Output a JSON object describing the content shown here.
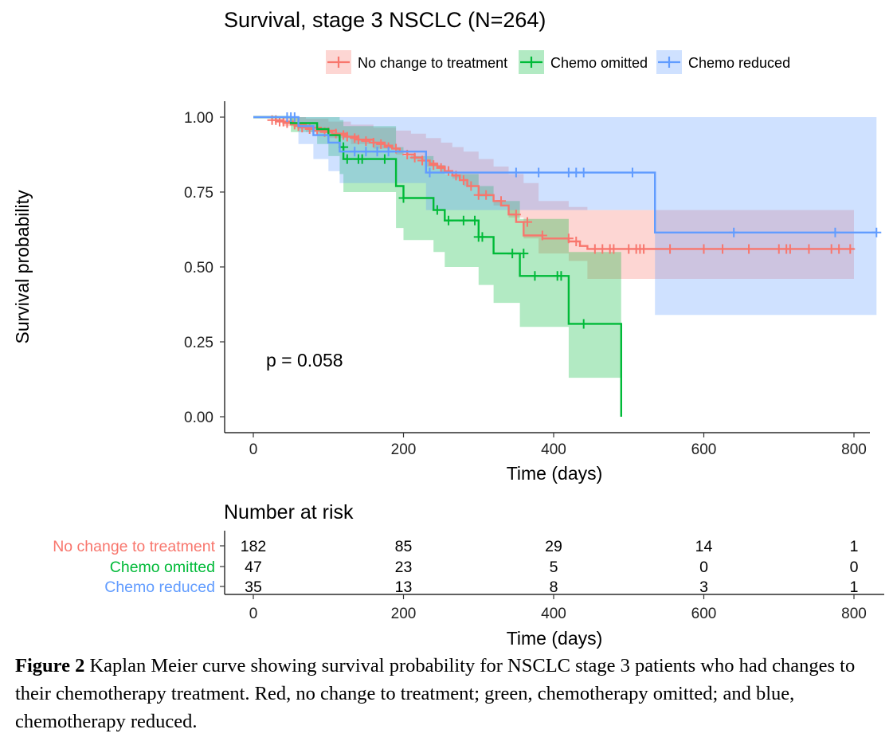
{
  "chart_data": {
    "type": "line",
    "subtype": "kaplan-meier",
    "title": "Survival, stage 3 NSCLC (N=264)",
    "xlabel": "Time (days)",
    "ylabel": "Survival probability",
    "xlim": [
      0,
      830
    ],
    "ylim": [
      0,
      1
    ],
    "x_ticks": [
      0,
      200,
      400,
      600,
      800
    ],
    "x_tick_labels": [
      "0",
      "200",
      "400",
      "600",
      "800"
    ],
    "y_ticks": [
      0,
      0.25,
      0.5,
      0.75,
      1
    ],
    "y_tick_labels": [
      "0.00",
      "0.25",
      "0.50",
      "0.75",
      "1.00"
    ],
    "legend_position": "top",
    "annotation": "p = 0.058",
    "series": [
      {
        "name": "No change to treatment",
        "color": "#F8766D",
        "steps": [
          [
            0,
            1.0
          ],
          [
            30,
            0.99
          ],
          [
            40,
            0.985
          ],
          [
            55,
            0.975
          ],
          [
            70,
            0.965
          ],
          [
            90,
            0.955
          ],
          [
            110,
            0.945
          ],
          [
            125,
            0.935
          ],
          [
            140,
            0.925
          ],
          [
            160,
            0.915
          ],
          [
            175,
            0.905
          ],
          [
            185,
            0.895
          ],
          [
            195,
            0.885
          ],
          [
            205,
            0.875
          ],
          [
            215,
            0.865
          ],
          [
            225,
            0.855
          ],
          [
            235,
            0.845
          ],
          [
            245,
            0.835
          ],
          [
            255,
            0.82
          ],
          [
            265,
            0.805
          ],
          [
            275,
            0.79
          ],
          [
            285,
            0.77
          ],
          [
            300,
            0.74
          ],
          [
            320,
            0.72
          ],
          [
            330,
            0.705
          ],
          [
            340,
            0.675
          ],
          [
            350,
            0.65
          ],
          [
            360,
            0.605
          ],
          [
            385,
            0.595
          ],
          [
            420,
            0.585
          ],
          [
            435,
            0.57
          ],
          [
            445,
            0.56
          ],
          [
            800,
            0.56
          ]
        ],
        "ci_upper": [
          [
            0,
            1.0
          ],
          [
            40,
            1.0
          ],
          [
            70,
            0.995
          ],
          [
            100,
            0.985
          ],
          [
            130,
            0.975
          ],
          [
            160,
            0.965
          ],
          [
            190,
            0.955
          ],
          [
            210,
            0.945
          ],
          [
            230,
            0.93
          ],
          [
            250,
            0.915
          ],
          [
            265,
            0.9
          ],
          [
            280,
            0.885
          ],
          [
            300,
            0.86
          ],
          [
            320,
            0.835
          ],
          [
            340,
            0.81
          ],
          [
            360,
            0.78
          ],
          [
            380,
            0.72
          ],
          [
            420,
            0.7
          ],
          [
            445,
            0.69
          ],
          [
            800,
            0.69
          ]
        ],
        "ci_lower": [
          [
            0,
            1.0
          ],
          [
            40,
            0.97
          ],
          [
            70,
            0.95
          ],
          [
            100,
            0.93
          ],
          [
            130,
            0.91
          ],
          [
            160,
            0.895
          ],
          [
            190,
            0.875
          ],
          [
            210,
            0.86
          ],
          [
            230,
            0.835
          ],
          [
            250,
            0.815
          ],
          [
            265,
            0.795
          ],
          [
            280,
            0.77
          ],
          [
            300,
            0.735
          ],
          [
            320,
            0.705
          ],
          [
            340,
            0.665
          ],
          [
            360,
            0.595
          ],
          [
            380,
            0.545
          ],
          [
            420,
            0.52
          ],
          [
            445,
            0.46
          ],
          [
            800,
            0.46
          ]
        ],
        "censored": [
          25,
          30,
          35,
          40,
          45,
          55,
          60,
          65,
          75,
          85,
          95,
          100,
          110,
          120,
          125,
          135,
          140,
          150,
          160,
          170,
          180,
          190,
          205,
          215,
          225,
          240,
          250,
          260,
          270,
          280,
          290,
          300,
          310,
          330,
          350,
          365,
          385,
          420,
          430,
          455,
          465,
          475,
          480,
          500,
          510,
          515,
          520,
          555,
          600,
          625,
          660,
          700,
          710,
          715,
          740,
          770,
          780,
          795
        ],
        "censored_y": [
          0.99,
          0.99,
          0.985,
          0.985,
          0.98,
          0.975,
          0.97,
          0.965,
          0.96,
          0.955,
          0.95,
          0.95,
          0.945,
          0.94,
          0.935,
          0.93,
          0.925,
          0.92,
          0.915,
          0.91,
          0.9,
          0.895,
          0.875,
          0.865,
          0.855,
          0.84,
          0.83,
          0.82,
          0.805,
          0.79,
          0.77,
          0.74,
          0.74,
          0.72,
          0.675,
          0.65,
          0.605,
          0.595,
          0.585,
          0.56,
          0.56,
          0.56,
          0.56,
          0.56,
          0.56,
          0.56,
          0.56,
          0.56,
          0.56,
          0.56,
          0.56,
          0.56,
          0.56,
          0.56,
          0.56,
          0.56,
          0.56,
          0.56
        ]
      },
      {
        "name": "Chemo omitted",
        "color": "#00BA38",
        "steps": [
          [
            0,
            1.0
          ],
          [
            50,
            0.98
          ],
          [
            85,
            0.96
          ],
          [
            100,
            0.94
          ],
          [
            115,
            0.9
          ],
          [
            120,
            0.86
          ],
          [
            190,
            0.77
          ],
          [
            200,
            0.73
          ],
          [
            240,
            0.69
          ],
          [
            255,
            0.655
          ],
          [
            300,
            0.6
          ],
          [
            320,
            0.545
          ],
          [
            355,
            0.47
          ],
          [
            420,
            0.31
          ],
          [
            490,
            0.0
          ]
        ],
        "ci_upper": [
          [
            0,
            1.0
          ],
          [
            50,
            1.0
          ],
          [
            85,
            1.0
          ],
          [
            100,
            1.0
          ],
          [
            115,
            0.99
          ],
          [
            120,
            0.97
          ],
          [
            190,
            0.9
          ],
          [
            200,
            0.87
          ],
          [
            240,
            0.84
          ],
          [
            255,
            0.81
          ],
          [
            300,
            0.77
          ],
          [
            320,
            0.72
          ],
          [
            355,
            0.66
          ],
          [
            420,
            0.55
          ],
          [
            490,
            0.55
          ]
        ],
        "ci_lower": [
          [
            0,
            1.0
          ],
          [
            50,
            0.95
          ],
          [
            85,
            0.91
          ],
          [
            100,
            0.87
          ],
          [
            115,
            0.81
          ],
          [
            120,
            0.75
          ],
          [
            190,
            0.63
          ],
          [
            200,
            0.59
          ],
          [
            240,
            0.55
          ],
          [
            255,
            0.5
          ],
          [
            300,
            0.44
          ],
          [
            320,
            0.38
          ],
          [
            355,
            0.3
          ],
          [
            420,
            0.13
          ],
          [
            490,
            0.13
          ]
        ],
        "censored": [
          100,
          120,
          125,
          140,
          145,
          175,
          200,
          245,
          260,
          280,
          295,
          300,
          305,
          345,
          360,
          375,
          405,
          410,
          440
        ],
        "censored_y": [
          0.94,
          0.9,
          0.86,
          0.86,
          0.86,
          0.86,
          0.73,
          0.69,
          0.655,
          0.655,
          0.655,
          0.6,
          0.6,
          0.545,
          0.545,
          0.47,
          0.47,
          0.47,
          0.31
        ]
      },
      {
        "name": "Chemo reduced",
        "color": "#619CFF",
        "steps": [
          [
            0,
            1.0
          ],
          [
            60,
            0.97
          ],
          [
            80,
            0.94
          ],
          [
            100,
            0.915
          ],
          [
            115,
            0.885
          ],
          [
            160,
            0.885
          ],
          [
            230,
            0.815
          ],
          [
            535,
            0.615
          ],
          [
            830,
            0.615
          ]
        ],
        "ci_upper": [
          [
            0,
            1.0
          ],
          [
            60,
            1.0
          ],
          [
            80,
            1.0
          ],
          [
            100,
            1.0
          ],
          [
            115,
            1.0
          ],
          [
            160,
            1.0
          ],
          [
            230,
            1.0
          ],
          [
            535,
            1.0
          ],
          [
            830,
            1.0
          ]
        ],
        "ci_lower": [
          [
            0,
            1.0
          ],
          [
            60,
            0.91
          ],
          [
            80,
            0.86
          ],
          [
            100,
            0.82
          ],
          [
            115,
            0.78
          ],
          [
            160,
            0.78
          ],
          [
            230,
            0.69
          ],
          [
            535,
            0.34
          ],
          [
            830,
            0.34
          ]
        ],
        "censored": [
          45,
          50,
          55,
          135,
          150,
          165,
          180,
          235,
          350,
          380,
          420,
          430,
          440,
          505,
          640,
          775,
          830
        ],
        "censored_y": [
          1.0,
          1.0,
          1.0,
          0.885,
          0.885,
          0.885,
          0.885,
          0.815,
          0.815,
          0.815,
          0.815,
          0.815,
          0.815,
          0.815,
          0.615,
          0.615,
          0.615
        ]
      }
    ],
    "risk_table": {
      "title": "Number at risk",
      "xlabel": "Time (days)",
      "times": [
        0,
        200,
        400,
        600,
        800
      ],
      "rows": [
        {
          "name": "No change to treatment",
          "color": "#F8766D",
          "counts": [
            "182",
            "85",
            "29",
            "14",
            "1"
          ]
        },
        {
          "name": "Chemo omitted",
          "color": "#00BA38",
          "counts": [
            "47",
            "23",
            "5",
            "0",
            "0"
          ]
        },
        {
          "name": "Chemo reduced",
          "color": "#619CFF",
          "counts": [
            "35",
            "13",
            "8",
            "3",
            "1"
          ]
        }
      ]
    }
  },
  "caption": {
    "label": "Figure 2",
    "text": " Kaplan Meier curve showing survival probability for NSCLC stage 3 patients who had changes to their chemotherapy treatment. Red, no change to treatment; green, chemotherapy omitted; and blue, chemotherapy reduced."
  }
}
